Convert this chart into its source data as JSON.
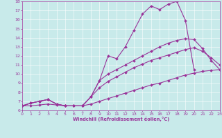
{
  "xlabel": "Windchill (Refroidissement éolien,°C)",
  "xlim": [
    0,
    23
  ],
  "ylim": [
    6,
    18
  ],
  "xticks": [
    0,
    1,
    2,
    3,
    4,
    5,
    6,
    7,
    8,
    9,
    10,
    11,
    12,
    13,
    14,
    15,
    16,
    17,
    18,
    19,
    20,
    21,
    22,
    23
  ],
  "yticks": [
    6,
    7,
    8,
    9,
    10,
    11,
    12,
    13,
    14,
    15,
    16,
    17,
    18
  ],
  "background_color": "#c8eaea",
  "line_color": "#993399",
  "line_width": 0.8,
  "marker": "D",
  "marker_size": 2.0,
  "series": [
    {
      "x": [
        0,
        1,
        2,
        3,
        4,
        5,
        6,
        7,
        8,
        9,
        10,
        11,
        12,
        13,
        14,
        15,
        16,
        17,
        18,
        19,
        20
      ],
      "y": [
        6.5,
        6.8,
        7.0,
        7.2,
        6.7,
        6.5,
        6.5,
        6.5,
        7.5,
        9.3,
        12.0,
        11.7,
        13.0,
        14.8,
        16.6,
        17.5,
        17.1,
        17.7,
        18.0,
        15.9,
        10.5
      ]
    },
    {
      "x": [
        0,
        1,
        2,
        3,
        4,
        5,
        6,
        7,
        8,
        9,
        10,
        11,
        12,
        13,
        14,
        15,
        16,
        17,
        18,
        19,
        20,
        21,
        22,
        23
      ],
      "y": [
        6.5,
        6.8,
        7.0,
        7.2,
        6.7,
        6.5,
        6.5,
        6.5,
        7.5,
        9.3,
        10.0,
        10.5,
        11.0,
        11.5,
        12.0,
        12.5,
        13.0,
        13.4,
        13.7,
        13.9,
        13.8,
        12.8,
        11.5,
        10.5
      ]
    },
    {
      "x": [
        0,
        1,
        2,
        3,
        4,
        5,
        6,
        7,
        8,
        9,
        10,
        11,
        12,
        13,
        14,
        15,
        16,
        17,
        18,
        19,
        20,
        21,
        22,
        23
      ],
      "y": [
        6.5,
        6.5,
        6.6,
        6.7,
        6.6,
        6.5,
        6.5,
        6.5,
        6.7,
        7.0,
        7.3,
        7.6,
        7.9,
        8.2,
        8.5,
        8.8,
        9.0,
        9.3,
        9.6,
        9.9,
        10.1,
        10.3,
        10.4,
        10.5
      ]
    },
    {
      "x": [
        0,
        1,
        2,
        3,
        4,
        5,
        6,
        7,
        8,
        9,
        10,
        11,
        12,
        13,
        14,
        15,
        16,
        17,
        18,
        19,
        20,
        21,
        22,
        23
      ],
      "y": [
        6.5,
        6.8,
        7.0,
        7.2,
        6.7,
        6.5,
        6.5,
        6.5,
        7.5,
        8.5,
        9.2,
        9.7,
        10.2,
        10.7,
        11.1,
        11.5,
        11.8,
        12.1,
        12.4,
        12.7,
        12.9,
        12.5,
        11.8,
        11.0
      ]
    }
  ]
}
